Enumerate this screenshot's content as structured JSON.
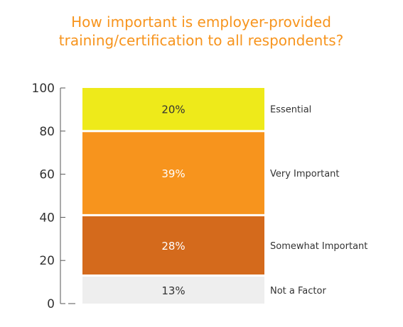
{
  "chart_data": {
    "type": "bar",
    "stacked": true,
    "title": "How important is employer-provided training/certification to all respondents?",
    "title_lines": [
      "How important is employer-provided",
      "training/certification to all respondents?"
    ],
    "xlabel": "",
    "ylabel": "",
    "ylim": [
      0,
      100
    ],
    "yticks": [
      "0",
      "20",
      "40",
      "60",
      "80",
      "100"
    ],
    "grid": false,
    "legend": "right",
    "series": [
      {
        "name": "Not a Factor",
        "value": 13,
        "label": "13%",
        "color": "#eeeeee",
        "text_color": "#333333"
      },
      {
        "name": "Somewhat Important",
        "value": 28,
        "label": "28%",
        "color": "#d46a1c",
        "text_color": "#ffffff"
      },
      {
        "name": "Very Important",
        "value": 39,
        "label": "39%",
        "color": "#f7941d",
        "text_color": "#ffffff"
      },
      {
        "name": "Essential",
        "value": 20,
        "label": "20%",
        "color": "#eeea1a",
        "text_color": "#333333"
      }
    ]
  },
  "colors": {
    "title": "#f7941d",
    "axis": "#555555",
    "background": "#ffffff"
  }
}
